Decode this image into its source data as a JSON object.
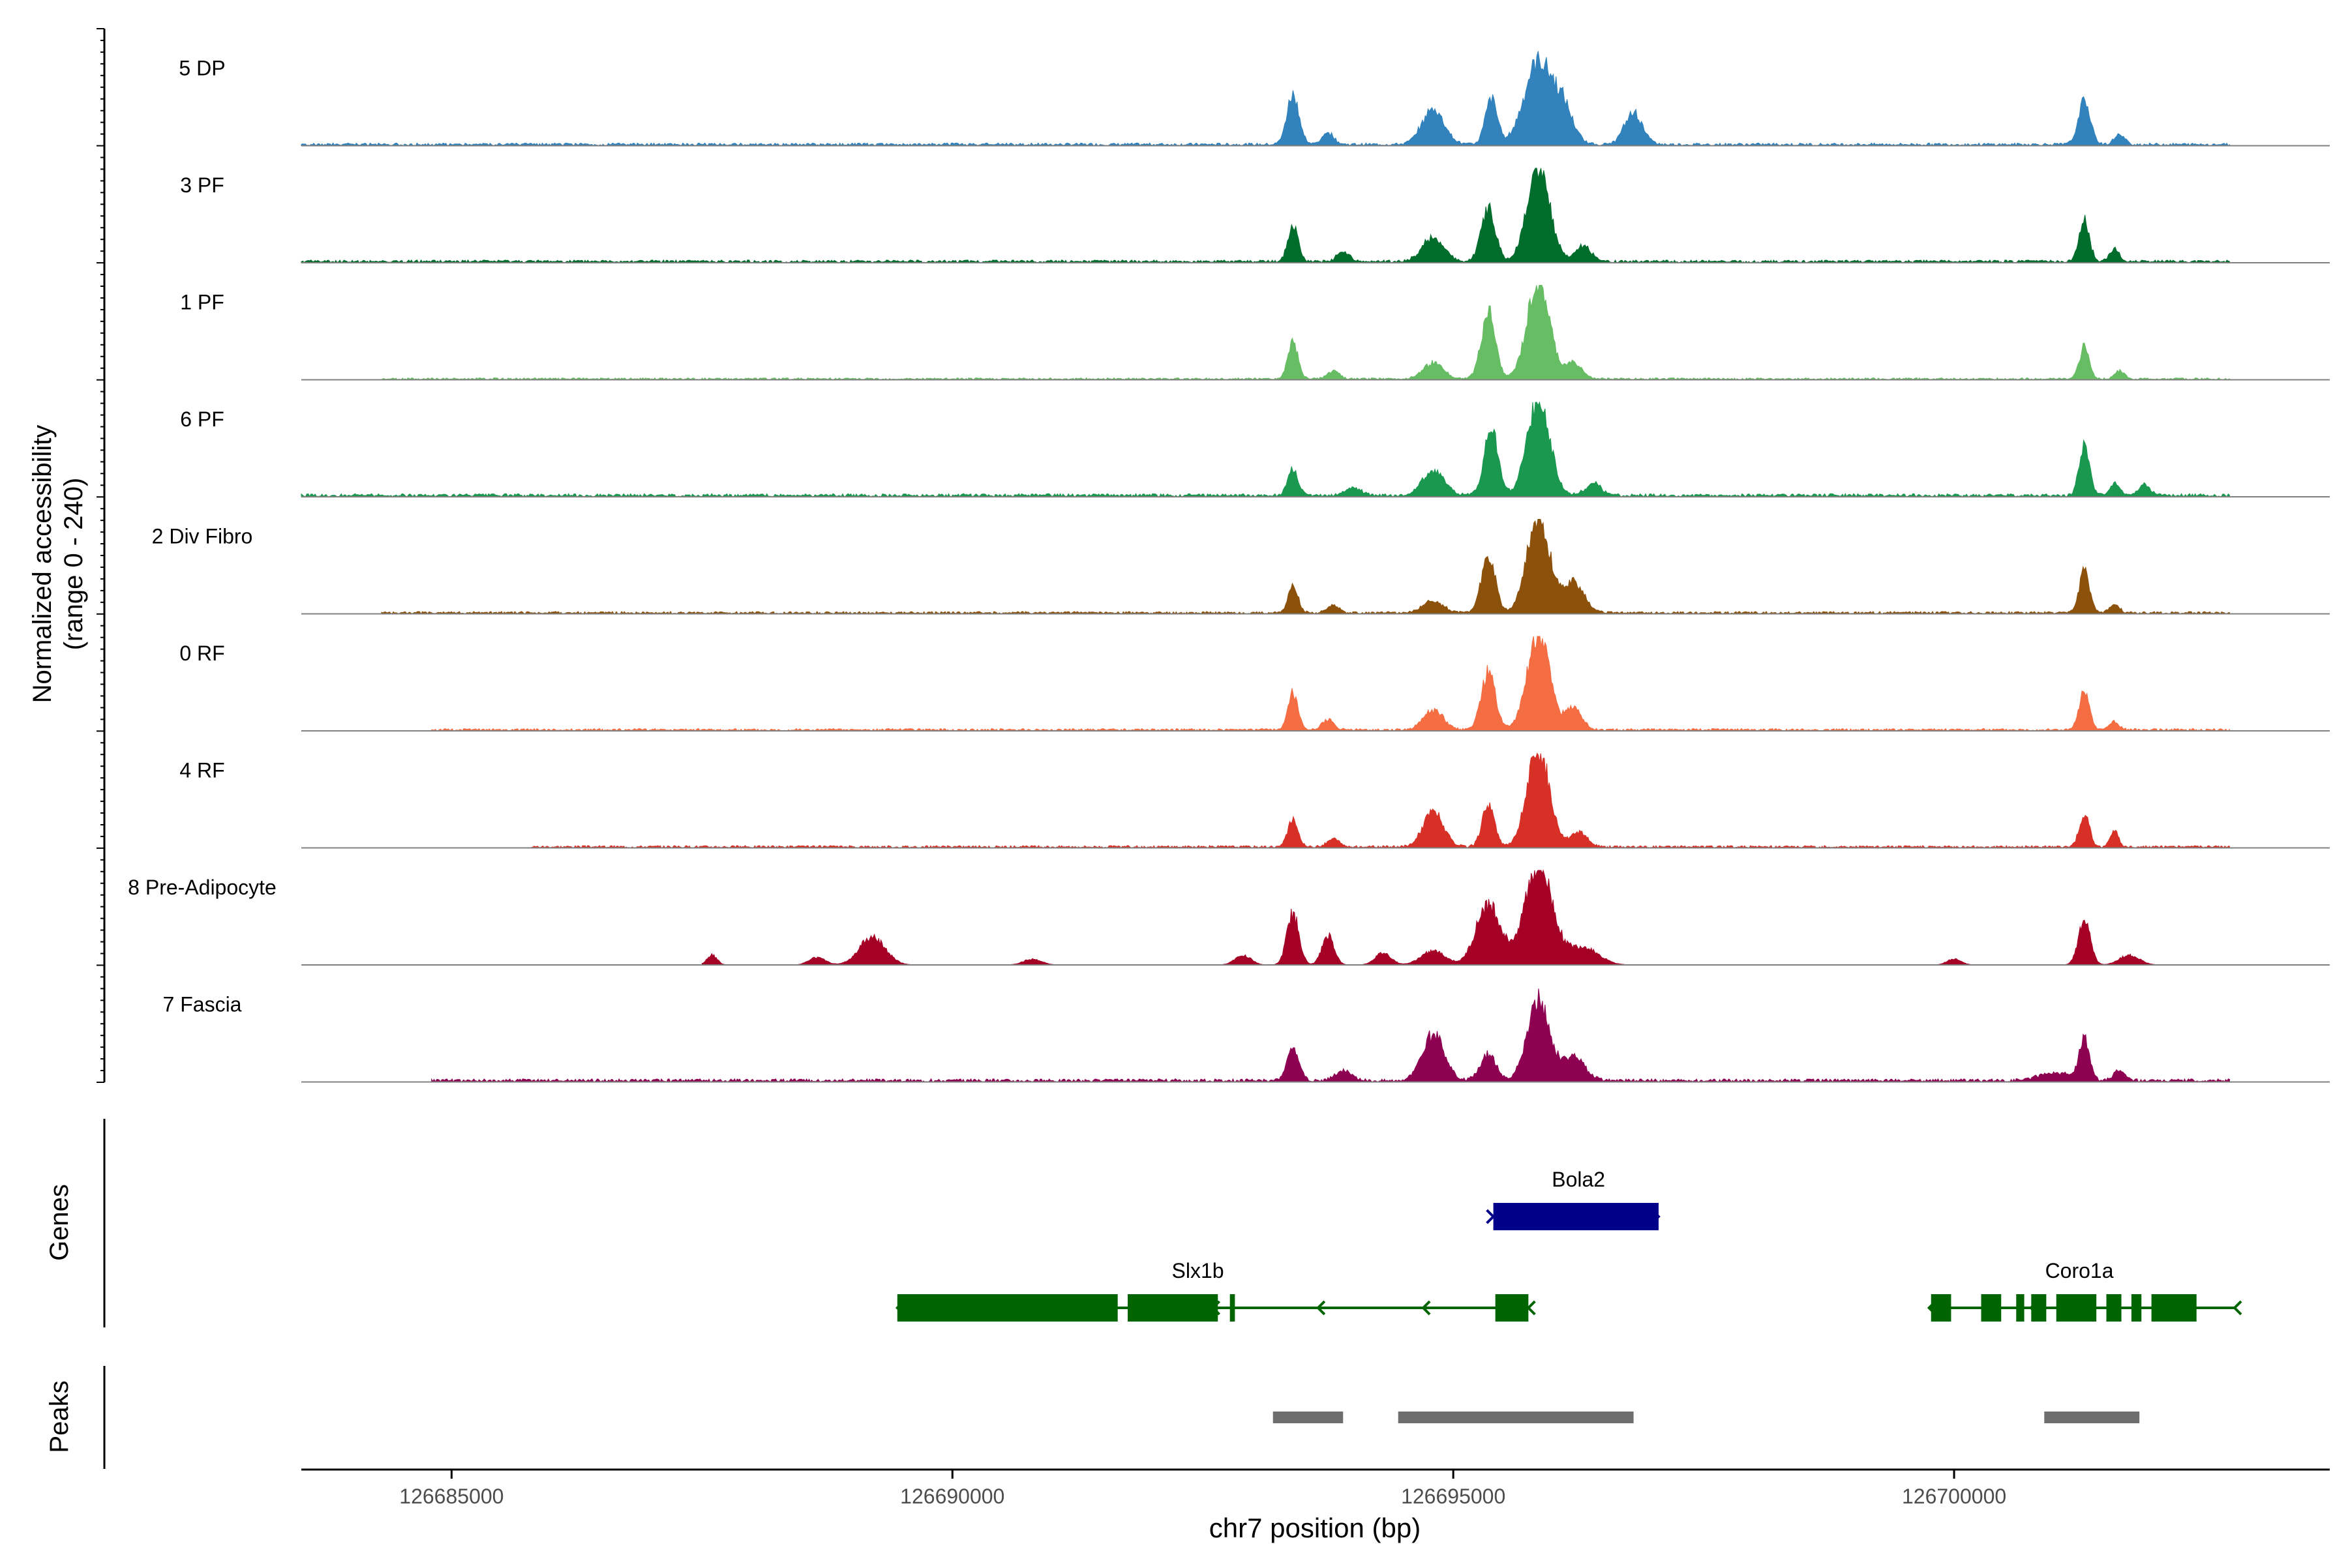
{
  "chart_data": {
    "type": "area",
    "title": "",
    "ylabel_line1": "Normalized accessibility",
    "ylabel_line2": "(range 0 - 240)",
    "genes_label": "Genes",
    "peaks_label": "Peaks",
    "xlabel": "chr7 position (bp)",
    "xlim": [
      126683500,
      126703750
    ],
    "ylim": [
      0,
      240
    ],
    "x_ticks": [
      126685000,
      126690000,
      126695000,
      126700000
    ],
    "x_tick_labels": [
      "126685000",
      "126690000",
      "126695000",
      "126700000"
    ],
    "track_colors": [
      "#3182bd",
      "#006d2c",
      "#66bd63",
      "#1a9850",
      "#8c510a",
      "#f46d43",
      "#d73027",
      "#a50026",
      "#8e0152"
    ],
    "tracks": [
      {
        "name": "5 DP",
        "color": "#3182bd",
        "base": 7,
        "noise_start": 126683500,
        "peaks": [
          [
            126693400,
            130,
            60
          ],
          [
            126693750,
            30,
            60
          ],
          [
            126694800,
            90,
            110
          ],
          [
            126695380,
            115,
            60
          ],
          [
            126695850,
            210,
            140
          ],
          [
            126696100,
            80,
            100
          ],
          [
            126696800,
            80,
            90
          ],
          [
            126701300,
            110,
            60
          ],
          [
            126701650,
            25,
            50
          ]
        ]
      },
      {
        "name": "3 PF",
        "color": "#006d2c",
        "base": 7,
        "noise_start": 126683500,
        "peaks": [
          [
            126693400,
            95,
            50
          ],
          [
            126693900,
            25,
            60
          ],
          [
            126694800,
            60,
            110
          ],
          [
            126695350,
            135,
            70
          ],
          [
            126695850,
            250,
            110
          ],
          [
            126696300,
            40,
            80
          ],
          [
            126701300,
            110,
            50
          ],
          [
            126701600,
            30,
            50
          ]
        ]
      },
      {
        "name": "1 PF",
        "color": "#66bd63",
        "base": 5,
        "noise_start": 126684300,
        "peaks": [
          [
            126693400,
            95,
            50
          ],
          [
            126693800,
            20,
            60
          ],
          [
            126694800,
            40,
            100
          ],
          [
            126695350,
            170,
            70
          ],
          [
            126695850,
            250,
            110
          ],
          [
            126696200,
            40,
            80
          ],
          [
            126701300,
            80,
            50
          ],
          [
            126701650,
            20,
            50
          ]
        ]
      },
      {
        "name": "6 PF",
        "color": "#1a9850",
        "base": 8,
        "noise_start": 126683500,
        "peaks": [
          [
            126693400,
            70,
            50
          ],
          [
            126694000,
            20,
            80
          ],
          [
            126694800,
            60,
            110
          ],
          [
            126695380,
            170,
            70
          ],
          [
            126695850,
            250,
            110
          ],
          [
            126696400,
            30,
            80
          ],
          [
            126701300,
            130,
            50
          ],
          [
            126701600,
            30,
            50
          ],
          [
            126701900,
            25,
            60
          ]
        ]
      },
      {
        "name": "2 Div Fibro",
        "color": "#8c510a",
        "base": 6,
        "noise_start": 126684300,
        "peaks": [
          [
            126693400,
            65,
            50
          ],
          [
            126693800,
            18,
            60
          ],
          [
            126694800,
            30,
            100
          ],
          [
            126695350,
            140,
            70
          ],
          [
            126695850,
            250,
            110
          ],
          [
            126696200,
            80,
            100
          ],
          [
            126701300,
            110,
            50
          ],
          [
            126701600,
            20,
            50
          ]
        ]
      },
      {
        "name": "0 RF",
        "color": "#f46d43",
        "base": 6,
        "noise_start": 126684800,
        "peaks": [
          [
            126693400,
            95,
            50
          ],
          [
            126693750,
            25,
            60
          ],
          [
            126694800,
            50,
            100
          ],
          [
            126695350,
            150,
            70
          ],
          [
            126695850,
            250,
            110
          ],
          [
            126696200,
            60,
            80
          ],
          [
            126701300,
            100,
            50
          ],
          [
            126701600,
            20,
            50
          ]
        ]
      },
      {
        "name": "4 RF",
        "color": "#d73027",
        "base": 6,
        "noise_start": 126685800,
        "peaks": [
          [
            126693400,
            70,
            50
          ],
          [
            126693800,
            20,
            60
          ],
          [
            126694800,
            90,
            100
          ],
          [
            126695350,
            110,
            60
          ],
          [
            126695850,
            250,
            110
          ],
          [
            126696250,
            40,
            80
          ],
          [
            126701300,
            80,
            50
          ],
          [
            126701600,
            40,
            40
          ]
        ]
      },
      {
        "name": "8 Pre-Adipocyte",
        "color": "#a50026",
        "base": 0,
        "noise_start": 126687500,
        "peaks": [
          [
            126687600,
            25,
            50
          ],
          [
            126688650,
            20,
            80
          ],
          [
            126689200,
            70,
            130
          ],
          [
            126690800,
            15,
            90
          ],
          [
            126692900,
            25,
            80
          ],
          [
            126693400,
            130,
            60
          ],
          [
            126693750,
            75,
            60
          ],
          [
            126694300,
            30,
            80
          ],
          [
            126694800,
            35,
            120
          ],
          [
            126695350,
            155,
            120
          ],
          [
            126695850,
            250,
            140
          ],
          [
            126696300,
            45,
            150
          ],
          [
            126700000,
            15,
            70
          ],
          [
            126701300,
            110,
            60
          ],
          [
            126701750,
            25,
            100
          ]
        ]
      },
      {
        "name": "7 Fascia",
        "color": "#8e0152",
        "base": 8,
        "noise_start": 126684800,
        "peaks": [
          [
            126693400,
            80,
            60
          ],
          [
            126693900,
            25,
            80
          ],
          [
            126694800,
            115,
            110
          ],
          [
            126695350,
            65,
            80
          ],
          [
            126695850,
            200,
            110
          ],
          [
            126696200,
            60,
            110
          ],
          [
            126701000,
            20,
            150
          ],
          [
            126701300,
            105,
            50
          ],
          [
            126701650,
            25,
            60
          ]
        ]
      }
    ],
    "genes": [
      {
        "name": "Bola2",
        "strand": "+",
        "row": 0,
        "color": "#00008b",
        "start": 126695400,
        "end": 126697050,
        "exons": [
          [
            126695400,
            126697050
          ]
        ]
      },
      {
        "name": "Slx1b",
        "strand": "-",
        "row": 1,
        "color": "#006400",
        "start": 126689450,
        "end": 126695750,
        "exons": [
          [
            126689450,
            126691650
          ],
          [
            126691750,
            126692650
          ],
          [
            126692770,
            126692820
          ],
          [
            126695420,
            126695750
          ]
        ]
      },
      {
        "name": "Coro1a",
        "strand": "-",
        "row": 1,
        "color": "#006400",
        "start": 126699750,
        "end": 126702800,
        "exons": [
          [
            126699770,
            126699970
          ],
          [
            126700270,
            126700470
          ],
          [
            126700620,
            126700700
          ],
          [
            126700770,
            126700920
          ],
          [
            126701020,
            126701420
          ],
          [
            126701520,
            126701670
          ],
          [
            126701770,
            126701870
          ],
          [
            126701970,
            126702420
          ]
        ]
      }
    ],
    "peaks": [
      [
        126693200,
        126693900
      ],
      [
        126694450,
        126696800
      ],
      [
        126700900,
        126701850
      ]
    ]
  }
}
